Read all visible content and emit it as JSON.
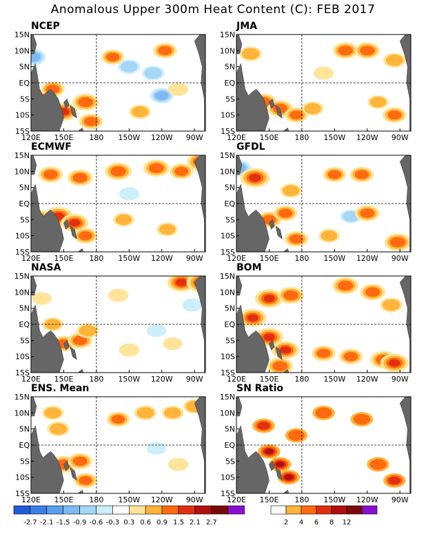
{
  "title": "Anomalous Upper 300m Heat Content (C): FEB 2017",
  "chart_data": [
    {
      "type": "heatmap",
      "title": "NCEP",
      "x_ticks": [
        "120E",
        "150E",
        "180",
        "150W",
        "120W",
        "90W"
      ],
      "y_ticks": [
        "15N",
        "10N",
        "5N",
        "EQ",
        "5S",
        "10S",
        "15S"
      ],
      "xlim": [
        "120E",
        "80W"
      ],
      "ylim": [
        "15S",
        "15N"
      ],
      "grid": "dashed lines at EQ and 180",
      "blobs": [
        {
          "lon": 122,
          "lat": 8,
          "v": -1.2
        },
        {
          "lon": 130,
          "lat": -5,
          "v": 1.6
        },
        {
          "lon": 150,
          "lat": -9,
          "v": 1.5
        },
        {
          "lon": 170,
          "lat": -6,
          "v": 1.3
        },
        {
          "lon": 175,
          "lat": -12,
          "v": 1.0
        },
        {
          "lon": 195,
          "lat": 8,
          "v": 0.9
        },
        {
          "lon": 243,
          "lat": 10,
          "v": 1.0
        },
        {
          "lon": 210,
          "lat": 5,
          "v": -0.8
        },
        {
          "lon": 232,
          "lat": 3,
          "v": -0.8
        },
        {
          "lon": 240,
          "lat": -4,
          "v": -1.0
        },
        {
          "lon": 220,
          "lat": -9,
          "v": 0.7
        },
        {
          "lon": 255,
          "lat": -2,
          "v": 0.5
        },
        {
          "lon": 140,
          "lat": -2,
          "v": 1.0
        }
      ]
    },
    {
      "type": "heatmap",
      "title": "JMA",
      "x_ticks": [
        "120E",
        "150E",
        "180",
        "150W",
        "120W",
        "90W"
      ],
      "y_ticks": [
        "15N",
        "10N",
        "5N",
        "EQ",
        "5S",
        "10S",
        "15S"
      ],
      "xlim": [
        "120E",
        "80W"
      ],
      "ylim": [
        "15S",
        "15N"
      ],
      "grid": "dashed lines at EQ and 180",
      "blobs": [
        {
          "lon": 125,
          "lat": -7,
          "v": 1.8
        },
        {
          "lon": 145,
          "lat": -6,
          "v": 1.3
        },
        {
          "lon": 160,
          "lat": -8,
          "v": 1.2
        },
        {
          "lon": 175,
          "lat": -10,
          "v": 0.9
        },
        {
          "lon": 190,
          "lat": -8,
          "v": 0.7
        },
        {
          "lon": 133,
          "lat": 9,
          "v": 0.8
        },
        {
          "lon": 220,
          "lat": 10,
          "v": 1.2
        },
        {
          "lon": 240,
          "lat": 10,
          "v": 1.2
        },
        {
          "lon": 265,
          "lat": 7,
          "v": 0.8
        },
        {
          "lon": 250,
          "lat": -6,
          "v": 0.6
        },
        {
          "lon": 265,
          "lat": -10,
          "v": 1.0
        },
        {
          "lon": 200,
          "lat": 3,
          "v": 0.5
        }
      ]
    },
    {
      "type": "heatmap",
      "title": "ECMWF",
      "x_ticks": [
        "120E",
        "150E",
        "180",
        "150W",
        "120W",
        "90W"
      ],
      "y_ticks": [
        "15N",
        "10N",
        "5N",
        "EQ",
        "5S",
        "10S",
        "15S"
      ],
      "xlim": [
        "120E",
        "80W"
      ],
      "ylim": [
        "15S",
        "15N"
      ],
      "grid": "dashed lines at EQ and 180",
      "blobs": [
        {
          "lon": 130,
          "lat": -5,
          "v": 1.6
        },
        {
          "lon": 145,
          "lat": -4,
          "v": 1.8
        },
        {
          "lon": 160,
          "lat": -6,
          "v": 1.5
        },
        {
          "lon": 170,
          "lat": -10,
          "v": 1.0
        },
        {
          "lon": 138,
          "lat": 9,
          "v": 1.1
        },
        {
          "lon": 165,
          "lat": 8,
          "v": 1.2
        },
        {
          "lon": 200,
          "lat": 10,
          "v": 1.4
        },
        {
          "lon": 235,
          "lat": 11,
          "v": 1.3
        },
        {
          "lon": 258,
          "lat": 10,
          "v": 1.0
        },
        {
          "lon": 276,
          "lat": 13,
          "v": 1.6
        },
        {
          "lon": 205,
          "lat": -5,
          "v": 0.6
        },
        {
          "lon": 245,
          "lat": -8,
          "v": 0.6
        },
        {
          "lon": 210,
          "lat": 3,
          "v": -0.5
        }
      ]
    },
    {
      "type": "heatmap",
      "title": "GFDL",
      "x_ticks": [
        "120E",
        "150E",
        "180",
        "150W",
        "120W",
        "90W"
      ],
      "y_ticks": [
        "15N",
        "10N",
        "5N",
        "EQ",
        "5S",
        "10S",
        "15S"
      ],
      "xlim": [
        "120E",
        "80W"
      ],
      "ylim": [
        "15S",
        "15N"
      ],
      "grid": "dashed lines at EQ and 180",
      "blobs": [
        {
          "lon": 122,
          "lat": 11,
          "v": -1.2
        },
        {
          "lon": 137,
          "lat": 8,
          "v": 1.8
        },
        {
          "lon": 132,
          "lat": -7,
          "v": 1.6
        },
        {
          "lon": 150,
          "lat": -5,
          "v": 1.1
        },
        {
          "lon": 165,
          "lat": -3,
          "v": 1.0
        },
        {
          "lon": 175,
          "lat": -11,
          "v": 1.0
        },
        {
          "lon": 170,
          "lat": 4,
          "v": 0.7
        },
        {
          "lon": 210,
          "lat": 9,
          "v": 0.9
        },
        {
          "lon": 235,
          "lat": 9,
          "v": 1.0
        },
        {
          "lon": 225,
          "lat": -4,
          "v": -0.6
        },
        {
          "lon": 240,
          "lat": -3,
          "v": 1.1
        },
        {
          "lon": 268,
          "lat": -12,
          "v": 1.4
        },
        {
          "lon": 205,
          "lat": -10,
          "v": 0.6
        }
      ]
    },
    {
      "type": "heatmap",
      "title": "NASA",
      "x_ticks": [
        "120E",
        "150E",
        "180",
        "150W",
        "120W",
        "90W"
      ],
      "y_ticks": [
        "15N",
        "10N",
        "5N",
        "EQ",
        "5S",
        "10S",
        "15S"
      ],
      "xlim": [
        "120E",
        "80W"
      ],
      "ylim": [
        "15S",
        "15N"
      ],
      "grid": "dashed lines at EQ and 180",
      "blobs": [
        {
          "lon": 150,
          "lat": -6,
          "v": 1.0
        },
        {
          "lon": 165,
          "lat": -5,
          "v": 1.1
        },
        {
          "lon": 172,
          "lat": -2,
          "v": 0.8
        },
        {
          "lon": 140,
          "lat": 0,
          "v": 0.6
        },
        {
          "lon": 130,
          "lat": 8,
          "v": 0.4
        },
        {
          "lon": 200,
          "lat": 9,
          "v": 0.5
        },
        {
          "lon": 258,
          "lat": 13,
          "v": 1.6
        },
        {
          "lon": 277,
          "lat": 13,
          "v": 2.0
        },
        {
          "lon": 268,
          "lat": 6,
          "v": -0.5
        },
        {
          "lon": 235,
          "lat": -2,
          "v": -0.4
        },
        {
          "lon": 210,
          "lat": -8,
          "v": 0.5
        },
        {
          "lon": 250,
          "lat": -6,
          "v": 0.4
        }
      ]
    },
    {
      "type": "heatmap",
      "title": "BOM",
      "x_ticks": [
        "120E",
        "150E",
        "180",
        "150W",
        "120W",
        "90W"
      ],
      "y_ticks": [
        "15N",
        "10N",
        "5N",
        "EQ",
        "5S",
        "10S",
        "15S"
      ],
      "xlim": [
        "120E",
        "80W"
      ],
      "ylim": [
        "15S",
        "15N"
      ],
      "grid": "dashed lines at EQ and 180",
      "blobs": [
        {
          "lon": 150,
          "lat": 8,
          "v": 1.6
        },
        {
          "lon": 170,
          "lat": 9,
          "v": 1.3
        },
        {
          "lon": 135,
          "lat": 2,
          "v": 1.5
        },
        {
          "lon": 150,
          "lat": -4,
          "v": 1.6
        },
        {
          "lon": 165,
          "lat": -8,
          "v": 1.5
        },
        {
          "lon": 160,
          "lat": -13,
          "v": 1.3
        },
        {
          "lon": 200,
          "lat": -9,
          "v": 1.0
        },
        {
          "lon": 225,
          "lat": -10,
          "v": 1.0
        },
        {
          "lon": 255,
          "lat": -11,
          "v": 1.4
        },
        {
          "lon": 265,
          "lat": -12,
          "v": 1.6
        },
        {
          "lon": 220,
          "lat": 12,
          "v": 1.3
        },
        {
          "lon": 245,
          "lat": 10,
          "v": 1.2
        },
        {
          "lon": 262,
          "lat": 6,
          "v": 0.8
        }
      ]
    },
    {
      "type": "heatmap",
      "title": "ENS. Mean",
      "x_ticks": [
        "120E",
        "150E",
        "180",
        "150W",
        "120W",
        "90W"
      ],
      "y_ticks": [
        "15N",
        "10N",
        "5N",
        "EQ",
        "5S",
        "10S",
        "15S"
      ],
      "xlim": [
        "120E",
        "80W"
      ],
      "ylim": [
        "15S",
        "15N"
      ],
      "grid": "dashed lines at EQ and 180",
      "blobs": [
        {
          "lon": 130,
          "lat": -6,
          "v": 1.3
        },
        {
          "lon": 150,
          "lat": -6,
          "v": 1.3
        },
        {
          "lon": 165,
          "lat": -5,
          "v": 1.1
        },
        {
          "lon": 170,
          "lat": -11,
          "v": 0.9
        },
        {
          "lon": 145,
          "lat": 5,
          "v": 0.8
        },
        {
          "lon": 140,
          "lat": 10,
          "v": 0.7
        },
        {
          "lon": 200,
          "lat": 8,
          "v": 0.9
        },
        {
          "lon": 225,
          "lat": 10,
          "v": 0.8
        },
        {
          "lon": 250,
          "lat": 10,
          "v": 0.7
        },
        {
          "lon": 270,
          "lat": 12,
          "v": 0.8
        },
        {
          "lon": 235,
          "lat": -1,
          "v": -0.4
        },
        {
          "lon": 255,
          "lat": -6,
          "v": 0.5
        }
      ]
    },
    {
      "type": "heatmap",
      "title": "SN Ratio",
      "x_ticks": [
        "120E",
        "150E",
        "180",
        "150W",
        "120W",
        "90W"
      ],
      "y_ticks": [
        "15N",
        "10N",
        "5N",
        "EQ",
        "5S",
        "10S",
        "15S"
      ],
      "xlim": [
        "120E",
        "80W"
      ],
      "ylim": [
        "15S",
        "15N"
      ],
      "grid": "dashed lines at EQ and 180",
      "blobs": [
        {
          "lon": 150,
          "lat": -2,
          "v": 10
        },
        {
          "lon": 160,
          "lat": -6,
          "v": 9
        },
        {
          "lon": 168,
          "lat": -10,
          "v": 8
        },
        {
          "lon": 145,
          "lat": 6,
          "v": 6
        },
        {
          "lon": 132,
          "lat": -8,
          "v": 5
        },
        {
          "lon": 175,
          "lat": 3,
          "v": 5
        },
        {
          "lon": 200,
          "lat": 10,
          "v": 4
        },
        {
          "lon": 235,
          "lat": 8,
          "v": 5
        },
        {
          "lon": 250,
          "lat": -6,
          "v": 5
        },
        {
          "lon": 265,
          "lat": -11,
          "v": 6
        }
      ]
    }
  ],
  "colorbar_anomaly": {
    "labels": [
      "-2.7",
      "-2.1",
      "-1.5",
      "-0.9",
      "-0.6",
      "-0.3",
      "0.3",
      "0.6",
      "0.9",
      "1.5",
      "2.1",
      "2.7"
    ],
    "colors": [
      "#1e5bd6",
      "#3a7fe6",
      "#5a9eee",
      "#7db9f2",
      "#a6d6f6",
      "#cceffb",
      "#ffffff",
      "#ffe49a",
      "#ffb43a",
      "#ff6a10",
      "#e03010",
      "#b01010",
      "#7a0a0a",
      "#8a10d0"
    ]
  },
  "colorbar_snr": {
    "labels": [
      "2",
      "4",
      "6",
      "8",
      "12"
    ],
    "colors": [
      "#ffffff",
      "#ffb43a",
      "#ff6a10",
      "#e03010",
      "#b01010",
      "#7a0a0a",
      "#8a10d0"
    ]
  }
}
